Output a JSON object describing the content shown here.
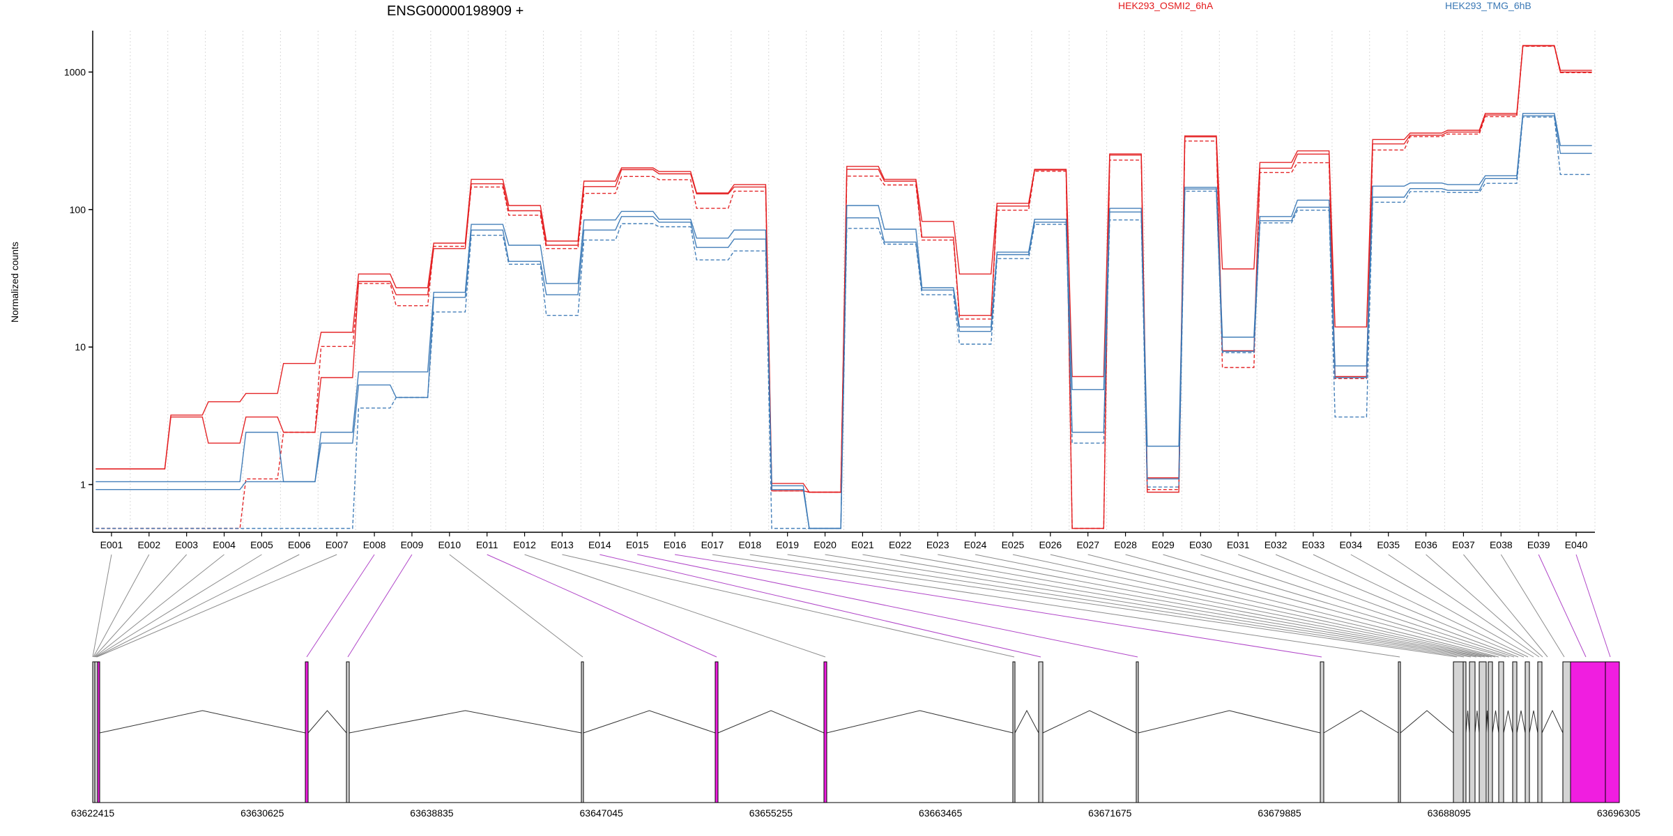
{
  "chart_data": {
    "type": "line",
    "title": "ENSG00000198909 +",
    "xlabel": "",
    "ylabel": "Normalized counts",
    "y_scale": "log",
    "ylim": [
      0.45,
      2000
    ],
    "y_ticks": [
      "1",
      "10",
      "100",
      "1000"
    ],
    "y_tick_values": [
      1,
      10,
      100,
      1000
    ],
    "grid": "vertical-minor",
    "legend_placement": "top",
    "legend": [
      {
        "name": "HEK293_OSMI2_6hA",
        "color": "#e31a1c"
      },
      {
        "name": "HEK293_TMG_6hB",
        "color": "#3a78b5"
      }
    ],
    "categories": [
      "E001",
      "E002",
      "E003",
      "E004",
      "E005",
      "E006",
      "E007",
      "E008",
      "E009",
      "E010",
      "E011",
      "E012",
      "E013",
      "E014",
      "E015",
      "E016",
      "E017",
      "E018",
      "E019",
      "E020",
      "E021",
      "E022",
      "E023",
      "E024",
      "E025",
      "E026",
      "E027",
      "E028",
      "E029",
      "E030",
      "E031",
      "E032",
      "E033",
      "E034",
      "E035",
      "E036",
      "E037",
      "E038",
      "E039",
      "E040"
    ],
    "series": [
      {
        "group": "HEK293_OSMI2_6hA",
        "color": "#e31a1c",
        "values": [
          1.3,
          1.3,
          3.2,
          4.0,
          4.6,
          7.6,
          12.8,
          34,
          27,
          57,
          166,
          107,
          59,
          161,
          201,
          189,
          132,
          152,
          1.02,
          0.88,
          206,
          166,
          82,
          34,
          111,
          196,
          6.1,
          254,
          1.12,
          343,
          37,
          220,
          267,
          14,
          323,
          360,
          377,
          500,
          1550,
          1030
        ]
      },
      {
        "group": "HEK293_OSMI2_6hA",
        "color": "#e31a1c",
        "values": [
          1.3,
          1.3,
          3.1,
          2.0,
          3.1,
          2.4,
          6.0,
          30,
          24,
          52,
          154,
          98,
          55,
          147,
          195,
          182,
          130,
          146,
          0.9,
          0.88,
          196,
          161,
          63,
          17,
          106,
          194,
          0.48,
          249,
          0.88,
          338,
          9.4,
          200,
          253,
          6.1,
          300,
          347,
          366,
          487,
          1560,
          1000
        ]
      },
      {
        "group": "HEK293_OSMI2_6hA",
        "color": "#e31a1c",
        "values": [
          0.48,
          0.48,
          0.48,
          0.48,
          1.1,
          2.4,
          10.1,
          29,
          20,
          54,
          146,
          91,
          52,
          131,
          174,
          165,
          102,
          136,
          0.9,
          0.88,
          175,
          151,
          60,
          16,
          99,
          190,
          0.48,
          229,
          0.92,
          315,
          7.1,
          186,
          219,
          5.9,
          271,
          339,
          354,
          474,
          1540,
          990
        ]
      },
      {
        "group": "HEK293_TMG_6hB",
        "color": "#3a78b5",
        "values": [
          1.05,
          1.05,
          1.05,
          1.05,
          2.4,
          1.05,
          2.4,
          6.6,
          6.6,
          25,
          78,
          55,
          29,
          84,
          97,
          85,
          62,
          71,
          0.98,
          0.48,
          107,
          72,
          27,
          14,
          49,
          85,
          4.9,
          102,
          1.9,
          145,
          11.8,
          89,
          117,
          7.3,
          148,
          156,
          152,
          176,
          500,
          292
        ]
      },
      {
        "group": "HEK293_TMG_6hB",
        "color": "#3a78b5",
        "values": [
          0.92,
          0.92,
          0.92,
          0.92,
          1.05,
          1.05,
          2.0,
          5.3,
          4.3,
          23,
          71,
          42,
          24,
          71,
          89,
          81,
          53,
          61,
          0.92,
          0.48,
          87,
          58,
          26,
          13,
          47,
          81,
          2.4,
          96,
          1.1,
          141,
          9.3,
          83,
          104,
          6.0,
          123,
          142,
          138,
          168,
          480,
          256
        ]
      },
      {
        "group": "HEK293_TMG_6hB",
        "color": "#3a78b5",
        "values": [
          0.48,
          0.48,
          0.48,
          0.48,
          0.48,
          0.48,
          0.48,
          3.6,
          4.3,
          18,
          65,
          40,
          17,
          60,
          79,
          75,
          43,
          50,
          0.48,
          0.48,
          73,
          56,
          24,
          10.5,
          44,
          78,
          2.0,
          84,
          0.96,
          136,
          9.1,
          80,
          99,
          3.1,
          113,
          135,
          133,
          155,
          470,
          180
        ]
      }
    ],
    "gene_model": {
      "coordinate_ticks": [
        "63622415",
        "63630625",
        "63638835",
        "63647045",
        "63655255",
        "63663465",
        "63671675",
        "63679885",
        "63688095",
        "63696305"
      ],
      "exon_colors": {
        "highlighted": "#f01ee0",
        "normal": "#d4d4d4",
        "outline": "#000000"
      }
    }
  }
}
